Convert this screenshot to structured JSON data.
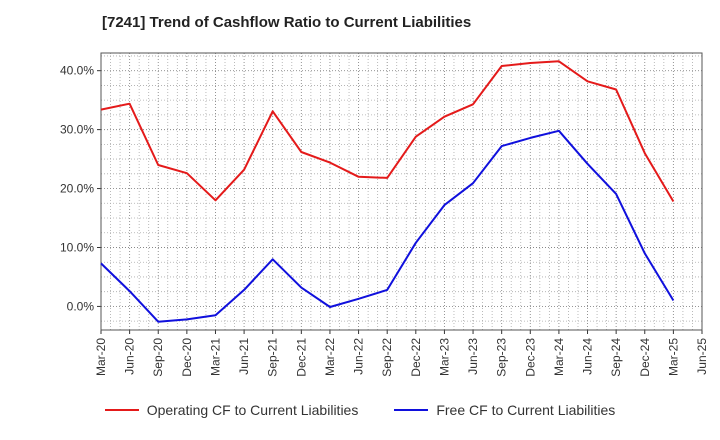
{
  "title": "[7241]  Trend of Cashflow Ratio to Current Liabilities",
  "colors": {
    "operating": "#e41a1a",
    "free": "#1010dd",
    "grid": "#aaaaaa"
  },
  "chart_data": {
    "type": "line",
    "title": "[7241]  Trend of Cashflow Ratio to Current Liabilities",
    "x_ticks": [
      "Mar-20",
      "Jun-20",
      "Sep-20",
      "Dec-20",
      "Mar-21",
      "Jun-21",
      "Sep-21",
      "Dec-21",
      "Mar-22",
      "Jun-22",
      "Sep-22",
      "Dec-22",
      "Mar-23",
      "Jun-23",
      "Sep-23",
      "Dec-23",
      "Mar-24",
      "Jun-24",
      "Sep-24",
      "Dec-24",
      "Mar-25",
      "Jun-25"
    ],
    "y_ticks": [
      "0.0%",
      "10.0%",
      "20.0%",
      "30.0%",
      "40.0%"
    ],
    "ylim": [
      -4,
      43
    ],
    "y_unit": "%",
    "grid": true,
    "legend_position": "bottom",
    "series": [
      {
        "name": "Operating CF to Current Liabilities",
        "color": "#e41a1a",
        "x": [
          "Mar-20",
          "Jun-20",
          "Sep-20",
          "Dec-20",
          "Mar-21",
          "Jun-21",
          "Sep-21",
          "Dec-21",
          "Mar-22",
          "Jun-22",
          "Sep-22",
          "Dec-22",
          "Mar-23",
          "Jun-23",
          "Sep-23",
          "Dec-23",
          "Mar-24",
          "Jun-24",
          "Sep-24",
          "Dec-24",
          "Mar-25"
        ],
        "values": [
          33.4,
          34.4,
          24.0,
          22.6,
          18.0,
          23.2,
          33.1,
          26.2,
          24.4,
          22.0,
          21.8,
          28.8,
          32.2,
          34.3,
          40.8,
          41.3,
          41.6,
          38.2,
          36.8,
          26.0,
          17.8
        ]
      },
      {
        "name": "Free CF to Current Liabilities",
        "color": "#1010dd",
        "x": [
          "Mar-20",
          "Jun-20",
          "Sep-20",
          "Dec-20",
          "Mar-21",
          "Jun-21",
          "Sep-21",
          "Dec-21",
          "Mar-22",
          "Jun-22",
          "Sep-22",
          "Dec-22",
          "Mar-23",
          "Jun-23",
          "Sep-23",
          "Dec-23",
          "Mar-24",
          "Jun-24",
          "Sep-24",
          "Dec-24",
          "Mar-25"
        ],
        "values": [
          7.3,
          2.6,
          -2.6,
          -2.2,
          -1.5,
          2.8,
          8.0,
          3.2,
          -0.1,
          1.3,
          2.8,
          10.8,
          17.2,
          20.9,
          27.2,
          28.6,
          29.8,
          24.2,
          19.1,
          9.0,
          1.0
        ]
      }
    ]
  }
}
